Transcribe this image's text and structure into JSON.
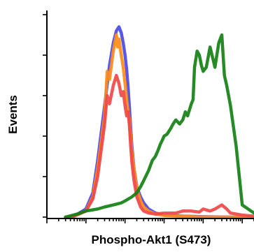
{
  "chart_data": {
    "type": "line",
    "title": "",
    "xlabel": "Phospho-Akt1 (S473)",
    "ylabel": "Events",
    "x_scale": "log",
    "xlim": [
      0.1,
      20000
    ],
    "ylim": [
      0,
      100
    ],
    "grid": false,
    "legend": "none",
    "series": [
      {
        "color": "#4a4ae6",
        "x": [
          0.3,
          0.5,
          1,
          1.5,
          2,
          3,
          4,
          5,
          6,
          7,
          8,
          9,
          10,
          11,
          12,
          13,
          14,
          15,
          17,
          20,
          25,
          30,
          40,
          60,
          100,
          300,
          1000,
          5000,
          20000
        ],
        "y": [
          0,
          0.5,
          4,
          12,
          28,
          55,
          75,
          86,
          92,
          94,
          91,
          86,
          80,
          73,
          64,
          54,
          44,
          35,
          24,
          15,
          10,
          7,
          4,
          2,
          1,
          0.5,
          0.2,
          0,
          0
        ]
      },
      {
        "color": "#ff8c1a",
        "x": [
          0.3,
          0.5,
          1,
          1.5,
          2,
          3,
          3.5,
          4,
          5,
          6,
          6.5,
          7,
          8,
          9,
          10,
          11,
          12,
          13,
          14,
          15,
          17,
          20,
          25,
          30,
          40,
          60,
          100,
          300,
          1000,
          5000,
          20000
        ],
        "y": [
          0,
          0.5,
          3,
          10,
          24,
          50,
          72,
          68,
          82,
          90,
          84,
          88,
          80,
          74,
          66,
          58,
          52,
          48,
          40,
          32,
          24,
          14,
          8,
          5,
          3,
          1.5,
          0.8,
          0.3,
          0.1,
          0,
          0
        ]
      },
      {
        "color": "#f04848",
        "x": [
          0.3,
          0.5,
          1,
          1.5,
          2,
          3,
          3.5,
          4,
          5,
          6,
          7,
          8,
          9,
          10,
          11,
          12,
          13,
          14,
          15,
          17,
          20,
          25,
          30,
          40,
          60,
          100,
          200,
          300,
          500,
          800,
          1000,
          1500,
          2000,
          3000,
          4000,
          5000,
          10000,
          20000
        ],
        "y": [
          0,
          0.5,
          3,
          9,
          20,
          46,
          60,
          56,
          65,
          70,
          66,
          60,
          62,
          55,
          50,
          52,
          45,
          35,
          27,
          18,
          10,
          5,
          3,
          2,
          1.5,
          2,
          2,
          3,
          3,
          2.5,
          4,
          3,
          4,
          6,
          4,
          2,
          1,
          0.5
        ]
      },
      {
        "color": "#148014",
        "x": [
          0.3,
          0.6,
          1,
          2,
          3,
          5,
          8,
          10,
          15,
          20,
          25,
          30,
          40,
          50,
          60,
          70,
          80,
          90,
          100,
          120,
          150,
          170,
          200,
          250,
          300,
          350,
          400,
          500,
          550,
          600,
          700,
          800,
          900,
          1000,
          1200,
          1500,
          2000,
          2500,
          3000,
          3500,
          4000,
          5000,
          7000,
          10000,
          20000
        ],
        "y": [
          0,
          1.5,
          3,
          4,
          5,
          6,
          7,
          8,
          10,
          12,
          15,
          18,
          23,
          28,
          30,
          33,
          36,
          38,
          40,
          41,
          44,
          46,
          48,
          46,
          48,
          52,
          50,
          56,
          58,
          74,
          82,
          80,
          75,
          72,
          74,
          84,
          74,
          86,
          90,
          70,
          65,
          55,
          35,
          6,
          2
        ]
      }
    ]
  }
}
